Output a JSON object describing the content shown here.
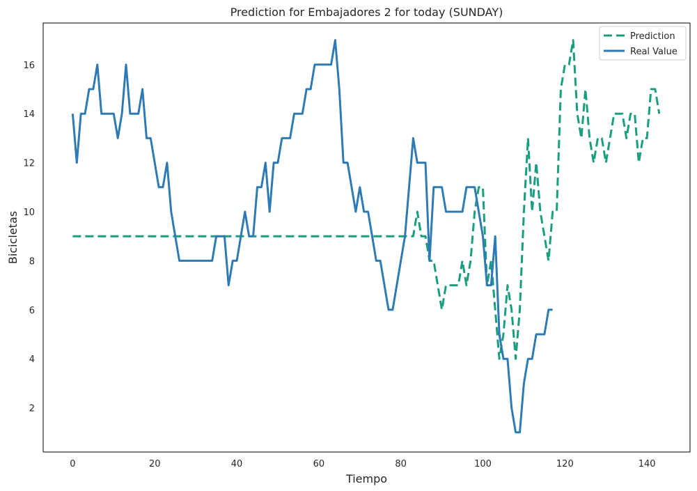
{
  "chart_data": {
    "type": "line",
    "title": "Prediction for Embajadores 2 for today (SUNDAY)",
    "xlabel": "Tiempo",
    "ylabel": "Bicicletas",
    "xlim": [
      -7.2,
      150.5
    ],
    "ylim": [
      0.2,
      17.7
    ],
    "xticks": [
      0,
      20,
      40,
      60,
      80,
      100,
      120,
      140
    ],
    "yticks": [
      2,
      4,
      6,
      8,
      10,
      12,
      14,
      16
    ],
    "grid": false,
    "legend_position": "top-right",
    "series": [
      {
        "name": "Prediction",
        "color": "#1a9e80",
        "style": "dashed",
        "points": [
          [
            0,
            9
          ],
          [
            83,
            9
          ],
          [
            84,
            10
          ],
          [
            85,
            9
          ],
          [
            86,
            9
          ],
          [
            87,
            8
          ],
          [
            88,
            8
          ],
          [
            89,
            7
          ],
          [
            90,
            6
          ],
          [
            91,
            7
          ],
          [
            92,
            7
          ],
          [
            93,
            7
          ],
          [
            94,
            7
          ],
          [
            95,
            8
          ],
          [
            96,
            7
          ],
          [
            97,
            8
          ],
          [
            98,
            10
          ],
          [
            99,
            11
          ],
          [
            100,
            11
          ],
          [
            101,
            7
          ],
          [
            102,
            8
          ],
          [
            103,
            6
          ],
          [
            104,
            4
          ],
          [
            105,
            5
          ],
          [
            106,
            7
          ],
          [
            107,
            6
          ],
          [
            108,
            4
          ],
          [
            109,
            6
          ],
          [
            110,
            10
          ],
          [
            111,
            13
          ],
          [
            112,
            10
          ],
          [
            113,
            12
          ],
          [
            114,
            10
          ],
          [
            115,
            9
          ],
          [
            116,
            8
          ],
          [
            117,
            10
          ],
          [
            118,
            10
          ],
          [
            119,
            15
          ],
          [
            120,
            16
          ],
          [
            121,
            16
          ],
          [
            122,
            17
          ],
          [
            123,
            14
          ],
          [
            124,
            13
          ],
          [
            125,
            15
          ],
          [
            126,
            13
          ],
          [
            127,
            12
          ],
          [
            128,
            13
          ],
          [
            129,
            13
          ],
          [
            130,
            12
          ],
          [
            131,
            13
          ],
          [
            132,
            14
          ],
          [
            133,
            14
          ],
          [
            134,
            14
          ],
          [
            135,
            13
          ],
          [
            136,
            14
          ],
          [
            137,
            14
          ],
          [
            138,
            12
          ],
          [
            139,
            13
          ],
          [
            140,
            13
          ],
          [
            141,
            15
          ],
          [
            142,
            15
          ],
          [
            143,
            14
          ]
        ]
      },
      {
        "name": "Real Value",
        "color": "#2e7ab5",
        "style": "solid",
        "points": [
          [
            0,
            14
          ],
          [
            1,
            12
          ],
          [
            2,
            14
          ],
          [
            3,
            14
          ],
          [
            4,
            15
          ],
          [
            5,
            15
          ],
          [
            6,
            16
          ],
          [
            7,
            14
          ],
          [
            8,
            14
          ],
          [
            9,
            14
          ],
          [
            10,
            14
          ],
          [
            11,
            13
          ],
          [
            12,
            14
          ],
          [
            13,
            16
          ],
          [
            14,
            14
          ],
          [
            15,
            14
          ],
          [
            16,
            14
          ],
          [
            17,
            15
          ],
          [
            18,
            13
          ],
          [
            19,
            13
          ],
          [
            20,
            12
          ],
          [
            21,
            11
          ],
          [
            22,
            11
          ],
          [
            23,
            12
          ],
          [
            24,
            10
          ],
          [
            25,
            9
          ],
          [
            26,
            8
          ],
          [
            27,
            8
          ],
          [
            28,
            8
          ],
          [
            29,
            8
          ],
          [
            30,
            8
          ],
          [
            31,
            8
          ],
          [
            32,
            8
          ],
          [
            33,
            8
          ],
          [
            34,
            8
          ],
          [
            35,
            9
          ],
          [
            36,
            9
          ],
          [
            37,
            9
          ],
          [
            38,
            7
          ],
          [
            39,
            8
          ],
          [
            40,
            8
          ],
          [
            41,
            9
          ],
          [
            42,
            10
          ],
          [
            43,
            9
          ],
          [
            44,
            9
          ],
          [
            45,
            11
          ],
          [
            46,
            11
          ],
          [
            47,
            12
          ],
          [
            48,
            10
          ],
          [
            49,
            12
          ],
          [
            50,
            12
          ],
          [
            51,
            13
          ],
          [
            52,
            13
          ],
          [
            53,
            13
          ],
          [
            54,
            14
          ],
          [
            55,
            14
          ],
          [
            56,
            14
          ],
          [
            57,
            15
          ],
          [
            58,
            15
          ],
          [
            59,
            16
          ],
          [
            60,
            16
          ],
          [
            61,
            16
          ],
          [
            62,
            16
          ],
          [
            63,
            16
          ],
          [
            64,
            17
          ],
          [
            65,
            15
          ],
          [
            66,
            12
          ],
          [
            67,
            12
          ],
          [
            68,
            11
          ],
          [
            69,
            10
          ],
          [
            70,
            11
          ],
          [
            71,
            10
          ],
          [
            72,
            10
          ],
          [
            73,
            9
          ],
          [
            74,
            8
          ],
          [
            75,
            8
          ],
          [
            76,
            7
          ],
          [
            77,
            6
          ],
          [
            78,
            6
          ],
          [
            79,
            7
          ],
          [
            80,
            8
          ],
          [
            81,
            9
          ],
          [
            82,
            11
          ],
          [
            83,
            13
          ],
          [
            84,
            12
          ],
          [
            85,
            12
          ],
          [
            86,
            12
          ],
          [
            87,
            8
          ],
          [
            88,
            11
          ],
          [
            89,
            11
          ],
          [
            90,
            11
          ],
          [
            91,
            10
          ],
          [
            92,
            10
          ],
          [
            93,
            10
          ],
          [
            94,
            10
          ],
          [
            95,
            10
          ],
          [
            96,
            11
          ],
          [
            97,
            11
          ],
          [
            98,
            11
          ],
          [
            99,
            10
          ],
          [
            100,
            9
          ],
          [
            101,
            7
          ],
          [
            102,
            7
          ],
          [
            103,
            9
          ],
          [
            104,
            5
          ],
          [
            105,
            4
          ],
          [
            106,
            4
          ],
          [
            107,
            2
          ],
          [
            108,
            1
          ],
          [
            109,
            1
          ],
          [
            110,
            3
          ],
          [
            111,
            4
          ],
          [
            112,
            4
          ],
          [
            113,
            5
          ],
          [
            114,
            5
          ],
          [
            115,
            5
          ],
          [
            116,
            6
          ],
          [
            117,
            6
          ]
        ]
      }
    ]
  }
}
